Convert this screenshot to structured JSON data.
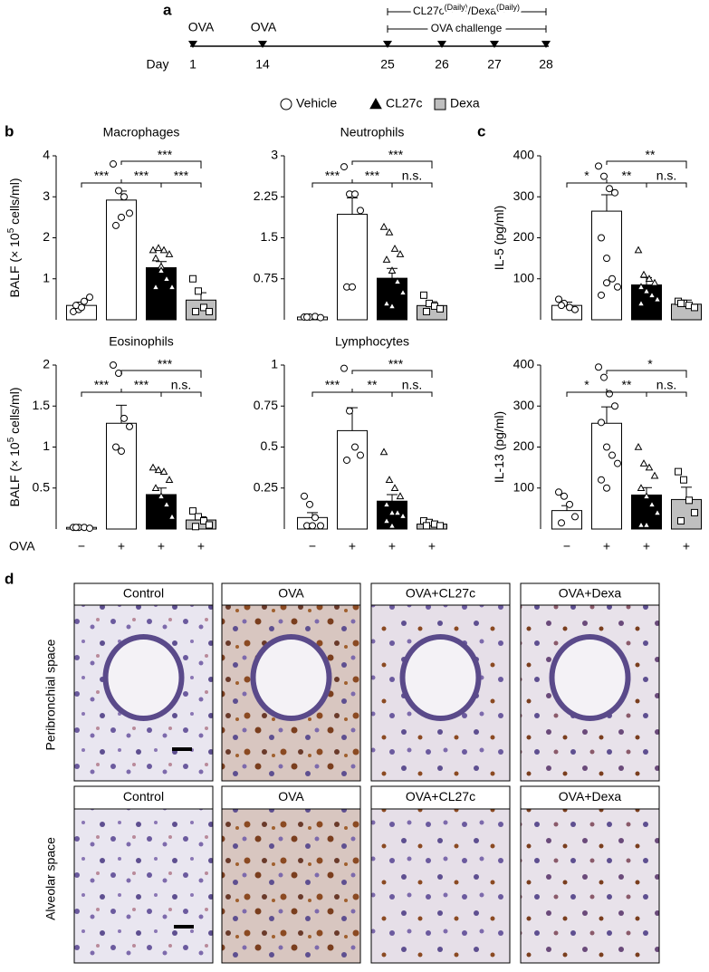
{
  "chart_data": [
    {
      "type": "bar",
      "title": "Macrophages",
      "ylabel": "BALF (× 10",
      "ylabel_sup": "5",
      "ylabel_tail": " cells/ml)",
      "categories": [
        null,
        null,
        null,
        null
      ],
      "values": [
        0.35,
        2.92,
        1.27,
        0.48
      ],
      "errors": [
        0.08,
        0.22,
        0.15,
        0.18
      ],
      "colors": [
        "#ffffff",
        "#ffffff",
        "#000000",
        "#bfbfbf"
      ],
      "markers": [
        "circle",
        "circle",
        "triangle",
        "square"
      ],
      "points": [
        [
          0.2,
          0.25,
          0.45,
          0.55,
          0.35,
          0.3
        ],
        [
          3.8,
          3.15,
          3.0,
          2.6,
          2.3,
          2.5
        ],
        [
          1.7,
          1.75,
          1.7,
          1.6,
          1.5,
          1.3,
          1.0,
          0.8,
          0.8,
          1.2
        ],
        [
          1.0,
          0.7,
          0.3,
          0.2,
          0.2
        ]
      ],
      "ylim": [
        0,
        4
      ],
      "yticks": [
        1,
        2,
        3,
        4
      ],
      "significance": [
        "***",
        "***",
        "***",
        "***"
      ]
    },
    {
      "type": "bar",
      "title": "Neutrophils",
      "categories": [
        null,
        null,
        null,
        null
      ],
      "values": [
        0.05,
        1.93,
        0.76,
        0.26
      ],
      "errors": [
        0.02,
        0.3,
        0.18,
        0.07
      ],
      "colors": [
        "#ffffff",
        "#ffffff",
        "#000000",
        "#bfbfbf"
      ],
      "markers": [
        "circle",
        "circle",
        "triangle",
        "square"
      ],
      "points": [
        [
          0.05,
          0.05,
          0.06,
          0.04,
          0.05
        ],
        [
          2.8,
          2.3,
          2.3,
          2.0,
          0.6,
          0.6
        ],
        [
          1.7,
          1.6,
          1.3,
          1.2,
          1.1,
          0.9,
          0.7,
          0.5,
          0.3,
          0.25
        ],
        [
          0.45,
          0.3,
          0.25,
          0.2,
          0.15
        ]
      ],
      "ylim": [
        0,
        3
      ],
      "yticks": [
        0.75,
        1.5,
        2.25,
        3
      ],
      "significance": [
        "***",
        "***",
        "n.s.",
        "***"
      ]
    },
    {
      "type": "bar",
      "ylabel": "IL-5 (pg/ml)",
      "categories": [
        null,
        null,
        null,
        null
      ],
      "values": [
        35,
        265,
        85,
        38
      ],
      "errors": [
        8,
        40,
        18,
        10
      ],
      "colors": [
        "#ffffff",
        "#ffffff",
        "#000000",
        "#bfbfbf"
      ],
      "markers": [
        "circle",
        "circle",
        "triangle",
        "square"
      ],
      "points": [
        [
          50,
          40,
          30,
          25,
          35
        ],
        [
          375,
          350,
          320,
          310,
          200,
          150,
          100,
          80,
          60,
          90
        ],
        [
          170,
          110,
          100,
          90,
          80,
          70,
          60,
          50,
          40
        ],
        [
          45,
          40,
          35,
          30,
          40
        ]
      ],
      "ylim": [
        0,
        400
      ],
      "yticks": [
        100,
        200,
        300,
        400
      ],
      "significance": [
        "*",
        "**",
        "n.s.",
        "**"
      ]
    },
    {
      "type": "bar",
      "title": "Eosinophils",
      "ylabel": "BALF (× 10",
      "ylabel_sup": "5",
      "ylabel_tail": " cells/ml)",
      "row_label": "OVA",
      "categories": [
        "−",
        "+",
        "+",
        "+"
      ],
      "values": [
        0.02,
        1.29,
        0.42,
        0.11
      ],
      "errors": [
        0.01,
        0.22,
        0.08,
        0.04
      ],
      "colors": [
        "#ffffff",
        "#ffffff",
        "#000000",
        "#bfbfbf"
      ],
      "markers": [
        "circle",
        "circle",
        "triangle",
        "square"
      ],
      "points": [
        [
          0.02,
          0.02,
          0.02,
          0.01,
          0.02
        ],
        [
          2.0,
          1.9,
          1.35,
          1.25,
          1.0,
          0.95
        ],
        [
          0.75,
          0.72,
          0.7,
          0.6,
          0.5,
          0.4,
          0.3,
          0.15
        ],
        [
          0.22,
          0.15,
          0.1,
          0.05,
          0.03
        ]
      ],
      "ylim": [
        0,
        2
      ],
      "yticks": [
        0.5,
        1,
        1.5,
        2
      ],
      "significance": [
        "***",
        "***",
        "n.s.",
        "***"
      ]
    },
    {
      "type": "bar",
      "title": "Lymphocytes",
      "categories": [
        "−",
        "+",
        "+",
        "+"
      ],
      "values": [
        0.07,
        0.6,
        0.17,
        0.03
      ],
      "errors": [
        0.03,
        0.14,
        0.04,
        0.01
      ],
      "colors": [
        "#ffffff",
        "#ffffff",
        "#000000",
        "#bfbfbf"
      ],
      "markers": [
        "circle",
        "circle",
        "triangle",
        "square"
      ],
      "points": [
        [
          0.2,
          0.15,
          0.07,
          0.02,
          0.02,
          0.02
        ],
        [
          0.98,
          0.72,
          0.5,
          0.45,
          0.42
        ],
        [
          0.47,
          0.3,
          0.25,
          0.2,
          0.15,
          0.1,
          0.1,
          0.08,
          0.05,
          0.02
        ],
        [
          0.05,
          0.04,
          0.03,
          0.02,
          0.02
        ]
      ],
      "ylim": [
        0,
        1
      ],
      "yticks": [
        0.25,
        0.5,
        0.75,
        1
      ],
      "significance": [
        "***",
        "**",
        "n.s.",
        "***"
      ]
    },
    {
      "type": "bar",
      "ylabel": "IL-13 (pg/ml)",
      "categories": [
        "−",
        "+",
        "+",
        "+"
      ],
      "values": [
        45,
        258,
        83,
        72
      ],
      "errors": [
        12,
        40,
        18,
        30
      ],
      "colors": [
        "#ffffff",
        "#ffffff",
        "#000000",
        "#bfbfbf"
      ],
      "markers": [
        "circle",
        "circle",
        "triangle",
        "square"
      ],
      "points": [
        [
          90,
          80,
          60,
          30,
          15
        ],
        [
          395,
          370,
          330,
          300,
          260,
          200,
          180,
          160,
          120,
          100
        ],
        [
          200,
          160,
          150,
          130,
          100,
          80,
          60,
          40,
          10,
          10
        ],
        [
          140,
          120,
          70,
          40,
          20
        ]
      ],
      "ylim": [
        0,
        400
      ],
      "yticks": [
        100,
        200,
        300,
        400
      ],
      "significance": [
        "*",
        "**",
        "n.s.",
        "*"
      ]
    }
  ],
  "panel_labels": [
    "a",
    "b",
    "c",
    "d"
  ],
  "timeline": {
    "events": [
      "OVA",
      "OVA"
    ],
    "day_label": "Day",
    "days": [
      "1",
      "14",
      "25",
      "26",
      "27",
      "28"
    ],
    "treatment": [
      "CL27c",
      "(Daily)",
      "/Dexa",
      "(Daily)"
    ],
    "challenge": "OVA challenge"
  },
  "legend": {
    "items": [
      {
        "name": "Vehicle",
        "marker": "circle",
        "color": "#ffffff"
      },
      {
        "name": "CL27c",
        "marker": "triangle",
        "color": "#000000"
      },
      {
        "name": "Dexa",
        "marker": "square",
        "color": "#bfbfbf"
      }
    ]
  },
  "histology": {
    "rows": [
      {
        "label": "Peribronchial space",
        "panels": [
          "Control",
          "OVA",
          "OVA+CL27c",
          "OVA+Dexa"
        ]
      },
      {
        "label": "Alveolar space",
        "panels": [
          "Control",
          "OVA",
          "OVA+CL27c",
          "OVA+Dexa"
        ]
      }
    ]
  }
}
